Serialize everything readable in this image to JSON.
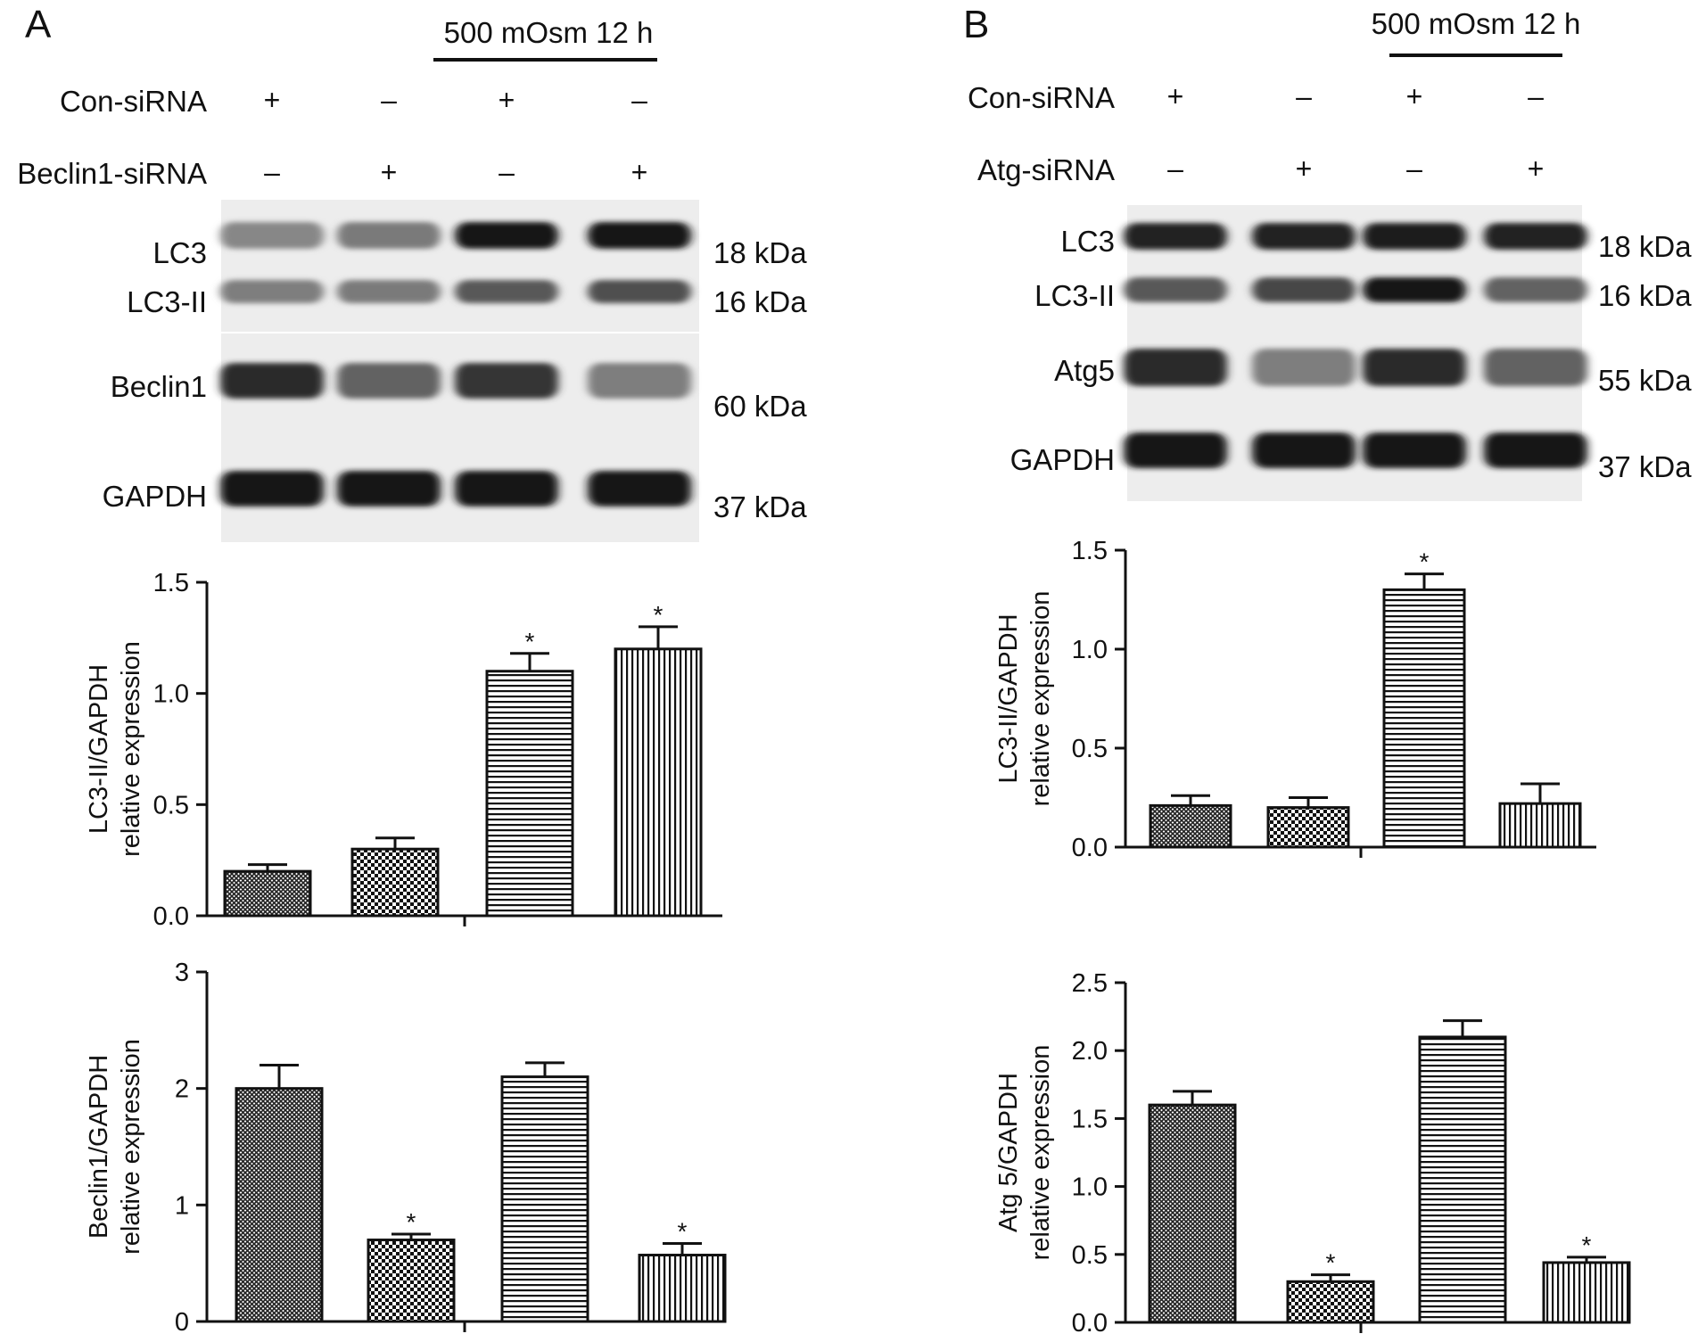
{
  "panels": [
    {
      "letter": "A",
      "treatment_label": "500 mOsm 12 h",
      "conditions": [
        {
          "name": "Con-siRNA",
          "signs": [
            "+",
            "–",
            "+",
            "–"
          ]
        },
        {
          "name": "Beclin1-siRNA",
          "signs": [
            "–",
            "+",
            "–",
            "+"
          ]
        }
      ],
      "blots": [
        {
          "label": "LC3",
          "kda": "18 kDa",
          "intensity": [
            0.35,
            0.42,
            0.95,
            0.95
          ]
        },
        {
          "label": "LC3-II",
          "kda": "16 kDa",
          "intensity": [
            0.4,
            0.42,
            0.6,
            0.65
          ]
        },
        {
          "label": "Beclin1",
          "kda": "60 kDa",
          "intensity": [
            0.85,
            0.55,
            0.8,
            0.4
          ]
        },
        {
          "label": "GAPDH",
          "kda": "37 kDa",
          "intensity": [
            0.95,
            0.95,
            0.95,
            0.95
          ]
        }
      ]
    },
    {
      "letter": "B",
      "treatment_label": "500 mOsm 12 h",
      "conditions": [
        {
          "name": "Con-siRNA",
          "signs": [
            "+",
            "–",
            "+",
            "–"
          ]
        },
        {
          "name": "Atg-siRNA",
          "signs": [
            "–",
            "+",
            "–",
            "+"
          ]
        }
      ],
      "blots": [
        {
          "label": "LC3",
          "kda": "18 kDa",
          "intensity": [
            0.9,
            0.9,
            0.92,
            0.9
          ]
        },
        {
          "label": "LC3-II",
          "kda": "16 kDa",
          "intensity": [
            0.6,
            0.7,
            0.95,
            0.55
          ]
        },
        {
          "label": "Atg5",
          "kda": "55 kDa",
          "intensity": [
            0.85,
            0.4,
            0.85,
            0.55
          ]
        },
        {
          "label": "GAPDH",
          "kda": "37 kDa",
          "intensity": [
            0.95,
            0.95,
            0.95,
            0.95
          ]
        }
      ]
    }
  ],
  "chart_data": [
    {
      "type": "bar",
      "panel": "A",
      "ylabel": [
        "LC3-II/GAPDH",
        "relative expression"
      ],
      "ylim": [
        0,
        1.5
      ],
      "yticks": [
        "0.0",
        "0.5",
        "1.0",
        "1.5"
      ],
      "values": [
        0.2,
        0.3,
        1.1,
        1.2
      ],
      "errors": [
        0.03,
        0.05,
        0.08,
        0.1
      ],
      "significant": [
        false,
        false,
        true,
        true
      ],
      "patterns": [
        "crosshatch",
        "checker",
        "hlines",
        "vlines"
      ]
    },
    {
      "type": "bar",
      "panel": "A",
      "ylabel": [
        "Beclin1/GAPDH",
        "relative expression"
      ],
      "ylim": [
        0,
        3
      ],
      "yticks": [
        "0",
        "1",
        "2",
        "3"
      ],
      "values": [
        2.0,
        0.7,
        2.1,
        0.57
      ],
      "errors": [
        0.2,
        0.05,
        0.12,
        0.1
      ],
      "significant": [
        false,
        true,
        false,
        true
      ],
      "patterns": [
        "crosshatch",
        "checker",
        "hlines",
        "vlines"
      ]
    },
    {
      "type": "bar",
      "panel": "B",
      "ylabel": [
        "LC3-II/GAPDH",
        "relative expression"
      ],
      "ylim": [
        0,
        1.5
      ],
      "yticks": [
        "0.0",
        "0.5",
        "1.0",
        "1.5"
      ],
      "values": [
        0.21,
        0.2,
        1.3,
        0.22
      ],
      "errors": [
        0.05,
        0.05,
        0.08,
        0.1
      ],
      "significant": [
        false,
        false,
        true,
        false
      ],
      "patterns": [
        "crosshatch",
        "checker",
        "hlines",
        "vlines"
      ]
    },
    {
      "type": "bar",
      "panel": "B",
      "ylabel": [
        "Atg 5/GAPDH",
        "relative expression"
      ],
      "ylim": [
        0,
        2.5
      ],
      "yticks": [
        "0.0",
        "0.5",
        "1.0",
        "1.5",
        "2.0",
        "2.5"
      ],
      "values": [
        1.6,
        0.3,
        2.1,
        0.44
      ],
      "errors": [
        0.1,
        0.05,
        0.12,
        0.04
      ],
      "significant": [
        false,
        true,
        false,
        true
      ],
      "patterns": [
        "crosshatch",
        "checker",
        "hlines",
        "vlines"
      ]
    }
  ],
  "significance_marker": "*"
}
